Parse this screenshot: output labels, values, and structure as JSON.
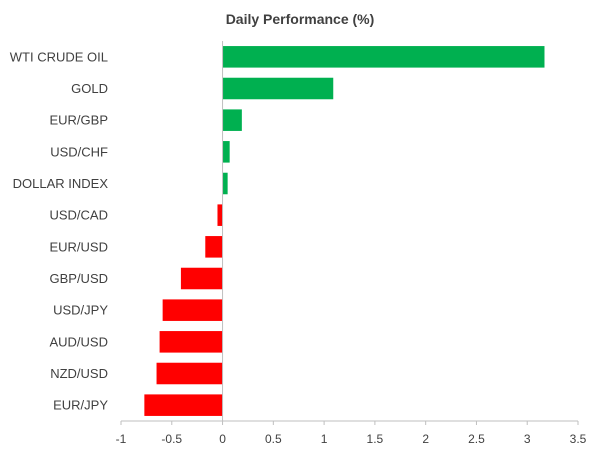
{
  "chart_data": {
    "type": "bar",
    "orientation": "horizontal",
    "title": "Daily Performance  (%)",
    "xlabel": "",
    "ylabel": "",
    "categories": [
      "WTI CRUDE OIL",
      "GOLD",
      "EUR/GBP",
      "USD/CHF",
      "DOLLAR INDEX",
      "USD/CAD",
      "EUR/USD",
      "GBP/USD",
      "USD/JPY",
      "AUD/USD",
      "NZD/USD",
      "EUR/JPY"
    ],
    "values": [
      3.17,
      1.09,
      0.19,
      0.07,
      0.05,
      -0.05,
      -0.17,
      -0.41,
      -0.59,
      -0.62,
      -0.65,
      -0.77
    ],
    "xlim": [
      -1,
      3.5
    ],
    "xticks": [
      "-1",
      "-0.5",
      "0",
      "0.5",
      "1",
      "1.5",
      "2",
      "2.5",
      "3",
      "3.5"
    ],
    "grid": false,
    "legend": "none",
    "colors": {
      "positive": "#00b050",
      "negative": "#ff0000",
      "axis": "#bfbfbf",
      "text": "#404040"
    }
  }
}
